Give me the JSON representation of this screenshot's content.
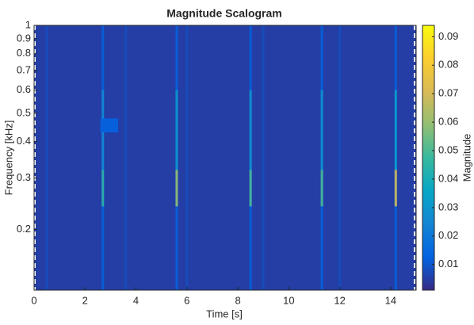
{
  "chart_data": {
    "type": "scalogram",
    "title": "Magnitude Scalogram",
    "x_label": "Time [s]",
    "y_label": "Frequency [kHz]",
    "colorbar_label": "Magnitude",
    "xlim": [
      0,
      15
    ],
    "xticks": [
      0,
      2,
      4,
      6,
      8,
      10,
      12,
      14
    ],
    "ylim": [
      0.124,
      1
    ],
    "yscale": "log",
    "yticks": [
      0.2,
      0.3,
      0.4,
      0.5,
      0.6,
      0.7,
      0.8,
      0.9,
      1
    ],
    "clim": [
      0.001,
      0.094
    ],
    "cticks": [
      0.01,
      0.02,
      0.03,
      0.04,
      0.05,
      0.06,
      0.07,
      0.08,
      0.09
    ],
    "colormap": [
      "#352a87",
      "#0363e1",
      "#1485d4",
      "#06a7c6",
      "#38b99e",
      "#92bf73",
      "#d9ba56",
      "#fcce2e",
      "#f9fb0e"
    ],
    "background": 0.005,
    "streaks": [
      {
        "x": 0.5,
        "f": [
          0.124,
          1
        ],
        "value": 0.008
      },
      {
        "x": 3.6,
        "f": [
          0.124,
          1
        ],
        "value": 0.008
      },
      {
        "x": 6.0,
        "f": [
          0.124,
          1
        ],
        "value": 0.008
      },
      {
        "x": 9.0,
        "f": [
          0.124,
          1
        ],
        "value": 0.008
      },
      {
        "x": 12.0,
        "f": [
          0.124,
          1
        ],
        "value": 0.008
      },
      {
        "x": 2.7,
        "f": [
          0.124,
          1
        ],
        "value": 0.012
      },
      {
        "x": 5.6,
        "f": [
          0.124,
          1
        ],
        "value": 0.012
      },
      {
        "x": 8.5,
        "f": [
          0.124,
          1
        ],
        "value": 0.012
      },
      {
        "x": 11.3,
        "f": [
          0.124,
          1
        ],
        "value": 0.012
      },
      {
        "x": 14.2,
        "f": [
          0.124,
          1
        ],
        "value": 0.012
      },
      {
        "x": 2.7,
        "f": [
          0.32,
          0.6
        ],
        "value": 0.025
      },
      {
        "x": 5.6,
        "f": [
          0.32,
          0.6
        ],
        "value": 0.03
      },
      {
        "x": 8.5,
        "f": [
          0.32,
          0.6
        ],
        "value": 0.028
      },
      {
        "x": 11.3,
        "f": [
          0.32,
          0.6
        ],
        "value": 0.028
      },
      {
        "x": 14.2,
        "f": [
          0.32,
          0.6
        ],
        "value": 0.032
      },
      {
        "x": 2.7,
        "f": [
          0.24,
          0.32
        ],
        "value": 0.045
      },
      {
        "x": 5.6,
        "f": [
          0.24,
          0.32
        ],
        "value": 0.06
      },
      {
        "x": 8.5,
        "f": [
          0.24,
          0.32
        ],
        "value": 0.05
      },
      {
        "x": 11.3,
        "f": [
          0.24,
          0.32
        ],
        "value": 0.05
      },
      {
        "x": 14.2,
        "f": [
          0.24,
          0.32
        ],
        "value": 0.07
      }
    ],
    "patch": {
      "x": [
        2.6,
        3.3
      ],
      "f": [
        0.43,
        0.48
      ],
      "value": 0.012
    }
  }
}
